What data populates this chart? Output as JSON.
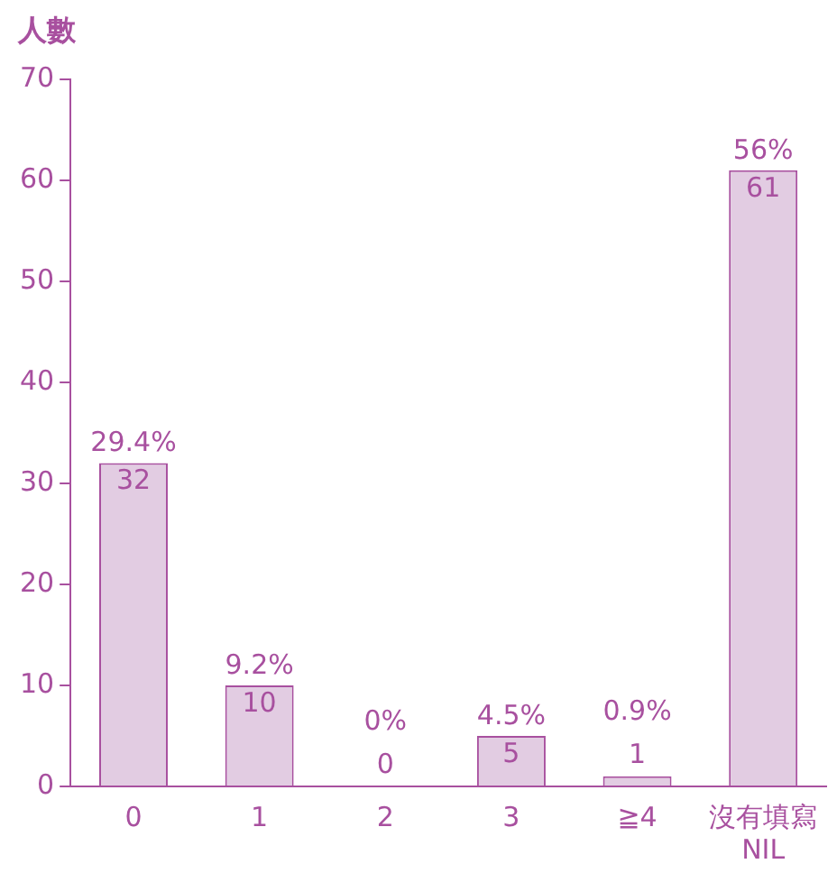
{
  "chart_data": {
    "type": "bar",
    "ylabel": "人數",
    "categories": [
      "0",
      "1",
      "2",
      "3",
      "≧4",
      "沒有填寫\nNIL"
    ],
    "values": [
      32,
      10,
      0,
      5,
      1,
      61
    ],
    "annotations": [
      {
        "text": "29.4%",
        "x": "0",
        "y": 32
      },
      {
        "text": "9.2%",
        "x": "1",
        "y": 10
      },
      {
        "text": "0%",
        "x": "2",
        "y": 0
      },
      {
        "text": "4.5%",
        "x": "3",
        "y": 5
      },
      {
        "text": "0.9%",
        "x": "≧4",
        "y": 1
      },
      {
        "text": "56%",
        "x": "沒有填寫\nNIL",
        "y": 61
      }
    ],
    "data_labels": true,
    "color": "#e2cce2",
    "ylim": [
      0,
      70
    ],
    "yticks": [
      0,
      10,
      20,
      30,
      40,
      50,
      60,
      70
    ],
    "grid": false,
    "legend": false
  }
}
